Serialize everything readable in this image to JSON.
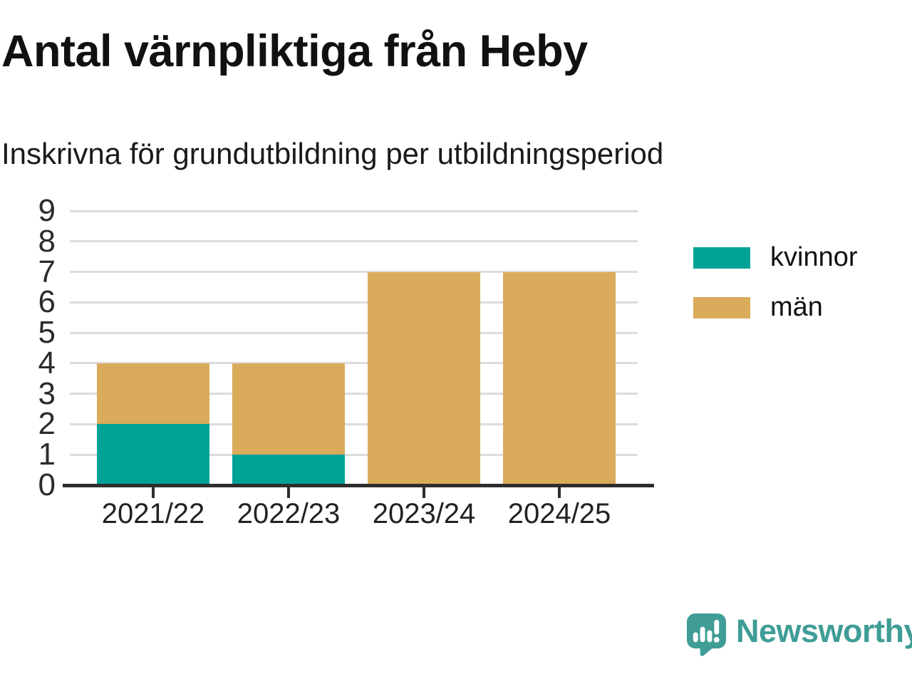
{
  "title": "Antal värnpliktiga från Heby",
  "subtitle": "Inskrivna för grundutbildning per utbildningsperiod",
  "legend": {
    "items": [
      {
        "label": "kvinnor",
        "color": "#00a298"
      },
      {
        "label": "män",
        "color": "#d9ab5b"
      }
    ]
  },
  "branding": {
    "name": "Newsworthy",
    "color": "#3f9d96"
  },
  "colors": {
    "gridline": "#dcdcdc",
    "axis": "#2d2d2d",
    "text": "#111111"
  },
  "chart_data": {
    "type": "bar",
    "stacked": true,
    "title": "Antal värnpliktiga från Heby",
    "subtitle": "Inskrivna för grundutbildning per utbildningsperiod",
    "categories": [
      "2021/22",
      "2022/23",
      "2023/24",
      "2024/25"
    ],
    "series": [
      {
        "name": "kvinnor",
        "color": "#00a298",
        "values": [
          2,
          1,
          0,
          0
        ]
      },
      {
        "name": "män",
        "color": "#d9ab5b",
        "values": [
          2,
          3,
          7,
          7
        ]
      }
    ],
    "totals": [
      4,
      4,
      7,
      7
    ],
    "xlabel": "",
    "ylabel": "",
    "ylim": [
      0,
      9
    ],
    "yticks": [
      0,
      1,
      2,
      3,
      4,
      5,
      6,
      7,
      8,
      9
    ],
    "grid": true,
    "legend_position": "right"
  }
}
